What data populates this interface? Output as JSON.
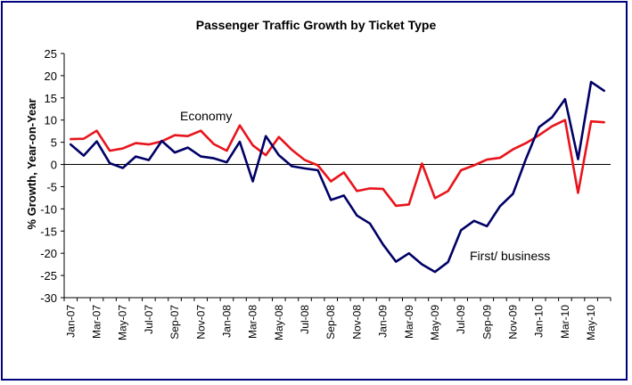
{
  "chart_data": {
    "type": "line",
    "title": "Passenger Traffic Growth by Ticket Type",
    "ylabel": "% Growth, Year-on-Year",
    "xlabel": "",
    "ylim": [
      -30,
      25
    ],
    "yticks": [
      25,
      20,
      15,
      10,
      5,
      0,
      -5,
      -10,
      -15,
      -20,
      -25,
      -30
    ],
    "x_tick_labels": [
      "Jan-07",
      "Mar-07",
      "May-07",
      "Jul-07",
      "Sep-07",
      "Nov-07",
      "Jan-08",
      "Mar-08",
      "May-08",
      "Jul-08",
      "Sep-08",
      "Nov-08",
      "Jan-09",
      "Mar-09",
      "May-09",
      "Jul-09",
      "Sep-09",
      "Nov-09",
      "Jan-10",
      "Mar-10",
      "May-10"
    ],
    "months": [
      "Jan-07",
      "Feb-07",
      "Mar-07",
      "Apr-07",
      "May-07",
      "Jun-07",
      "Jul-07",
      "Aug-07",
      "Sep-07",
      "Oct-07",
      "Nov-07",
      "Dec-07",
      "Jan-08",
      "Feb-08",
      "Mar-08",
      "Apr-08",
      "May-08",
      "Jun-08",
      "Jul-08",
      "Aug-08",
      "Sep-08",
      "Oct-08",
      "Nov-08",
      "Dec-08",
      "Jan-09",
      "Feb-09",
      "Mar-09",
      "Apr-09",
      "May-09",
      "Jun-09",
      "Jul-09",
      "Aug-09",
      "Sep-09",
      "Oct-09",
      "Nov-09",
      "Dec-09",
      "Jan-10",
      "Feb-10",
      "Mar-10",
      "Apr-10",
      "May-10",
      "Jun-10"
    ],
    "series": [
      {
        "name": "Economy",
        "color": "#e8141b",
        "values": [
          5.7,
          5.8,
          7.6,
          3.1,
          3.6,
          4.8,
          4.5,
          5.2,
          6.6,
          6.4,
          7.6,
          4.6,
          3.1,
          8.8,
          4.3,
          2.1,
          6.2,
          3.3,
          1.0,
          -0.2,
          -3.8,
          -1.8,
          -6.0,
          -5.4,
          -5.5,
          -9.3,
          -9.0,
          0.2,
          -7.6,
          -6.0,
          -1.3,
          -0.2,
          1.1,
          1.5,
          3.4,
          4.8,
          6.6,
          8.6,
          10.0,
          -6.4,
          9.7,
          9.5
        ]
      },
      {
        "name": "First/ business",
        "color": "#000066",
        "values": [
          4.5,
          2.0,
          5.2,
          0.3,
          -0.8,
          1.8,
          1.0,
          5.3,
          2.7,
          3.8,
          1.8,
          1.4,
          0.5,
          5.1,
          -3.8,
          6.4,
          2.1,
          -0.4,
          -0.9,
          -1.3,
          -8.0,
          -7.0,
          -11.5,
          -13.3,
          -18.0,
          -21.9,
          -20.0,
          -22.5,
          -24.2,
          -22.0,
          -14.8,
          -12.7,
          -13.9,
          -9.4,
          -6.6,
          1.3,
          8.4,
          10.6,
          14.7,
          1.2,
          18.6,
          16.6
        ]
      }
    ],
    "annotations": [
      {
        "text": "Economy",
        "series": "Economy"
      },
      {
        "text": "First/ business",
        "series": "First/ business"
      }
    ]
  }
}
